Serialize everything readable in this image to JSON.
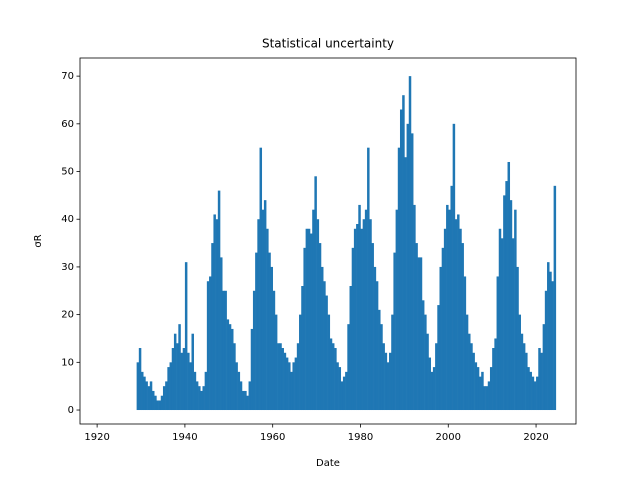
{
  "chart_data": {
    "type": "bar",
    "title": "Statistical uncertainty",
    "x_label": "Date",
    "y_label": "σR",
    "color": "#1f77b4",
    "x": [
      1929,
      1929.5,
      1930,
      1930.5,
      1931,
      1931.5,
      1932,
      1932.5,
      1933,
      1933.5,
      1934,
      1934.5,
      1935,
      1935.5,
      1936,
      1936.5,
      1937,
      1937.5,
      1938,
      1938.5,
      1939,
      1939.5,
      1940,
      1940.5,
      1941,
      1941.5,
      1942,
      1942.5,
      1943,
      1943.5,
      1944,
      1944.5,
      1945,
      1945.5,
      1946,
      1946.5,
      1947,
      1947.5,
      1948,
      1948.5,
      1949,
      1949.5,
      1950,
      1950.5,
      1951,
      1951.5,
      1952,
      1952.5,
      1953,
      1953.5,
      1954,
      1954.5,
      1955,
      1955.5,
      1956,
      1956.5,
      1957,
      1957.5,
      1958,
      1958.5,
      1959,
      1959.5,
      1960,
      1960.5,
      1961,
      1961.5,
      1962,
      1962.5,
      1963,
      1963.5,
      1964,
      1964.5,
      1965,
      1965.5,
      1966,
      1966.5,
      1967,
      1967.5,
      1968,
      1968.5,
      1969,
      1969.5,
      1970,
      1970.5,
      1971,
      1971.5,
      1972,
      1972.5,
      1973,
      1973.5,
      1974,
      1974.5,
      1975,
      1975.5,
      1976,
      1976.5,
      1977,
      1977.5,
      1978,
      1978.5,
      1979,
      1979.5,
      1980,
      1980.5,
      1981,
      1981.5,
      1982,
      1982.5,
      1983,
      1983.5,
      1984,
      1984.5,
      1985,
      1985.5,
      1986,
      1986.5,
      1987,
      1987.5,
      1988,
      1988.5,
      1989,
      1989.5,
      1990,
      1990.5,
      1991,
      1991.5,
      1992,
      1992.5,
      1993,
      1993.5,
      1994,
      1994.5,
      1995,
      1995.5,
      1996,
      1996.5,
      1997,
      1997.5,
      1998,
      1998.5,
      1999,
      1999.5,
      2000,
      2000.5,
      2001,
      2001.5,
      2002,
      2002.5,
      2003,
      2003.5,
      2004,
      2004.5,
      2005,
      2005.5,
      2006,
      2006.5,
      2007,
      2007.5,
      2008,
      2008.5,
      2009,
      2009.5,
      2010,
      2010.5,
      2011,
      2011.5,
      2012,
      2012.5,
      2013,
      2013.5,
      2014,
      2014.5,
      2015,
      2015.5,
      2016,
      2016.5,
      2017,
      2017.5,
      2018,
      2018.5,
      2019,
      2019.5,
      2020,
      2020.5,
      2021,
      2021.5,
      2022,
      2022.5,
      2023,
      2023.5,
      2024
    ],
    "values": [
      10,
      13,
      8,
      7,
      6,
      5,
      6,
      4,
      3,
      2,
      2,
      3,
      5,
      6,
      9,
      10,
      13,
      16,
      14,
      18,
      12,
      13,
      31,
      12,
      10,
      16,
      8,
      6,
      5,
      4,
      5,
      8,
      27,
      28,
      35,
      41,
      40,
      46,
      32,
      25,
      25,
      19,
      18,
      17,
      14,
      10,
      8,
      6,
      4,
      4,
      3,
      6,
      17,
      25,
      33,
      40,
      55,
      42,
      44,
      38,
      33,
      30,
      25,
      20,
      14,
      14,
      13,
      12,
      11,
      10,
      8,
      10,
      11,
      14,
      20,
      26,
      34,
      38,
      38,
      37,
      42,
      49,
      40,
      35,
      30,
      27,
      24,
      20,
      15,
      14,
      13,
      10,
      9,
      6,
      7,
      8,
      18,
      26,
      34,
      38,
      39,
      43,
      38,
      40,
      42,
      55,
      40,
      35,
      30,
      27,
      21,
      18,
      14,
      12,
      10,
      12,
      20,
      33,
      42,
      55,
      63,
      66,
      53,
      60,
      70,
      58,
      43,
      35,
      32,
      32,
      23,
      20,
      16,
      11,
      8,
      9,
      14,
      22,
      30,
      34,
      38,
      43,
      42,
      47,
      60,
      40,
      41,
      38,
      35,
      28,
      20,
      16,
      14,
      12,
      10,
      9,
      7,
      8,
      5,
      5,
      6,
      9,
      13,
      15,
      28,
      38,
      36,
      45,
      48,
      52,
      44,
      36,
      42,
      30,
      20,
      16,
      14,
      12,
      9,
      8,
      7,
      6,
      7,
      13,
      12,
      18,
      25,
      31,
      29,
      27,
      47
    ],
    "xlim": [
      1916.1,
      2029.1
    ],
    "ylim": [
      -2.93,
      73.8
    ],
    "xticks": [
      1920,
      1940,
      1960,
      1980,
      2000,
      2020
    ],
    "yticks": [
      0,
      10,
      20,
      30,
      40,
      50,
      60,
      70
    ]
  }
}
